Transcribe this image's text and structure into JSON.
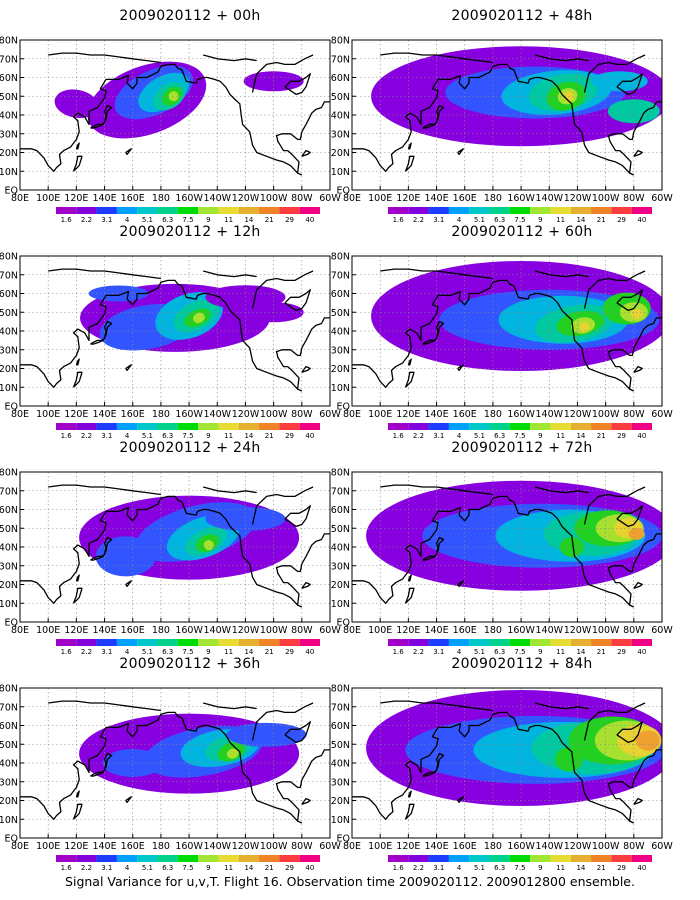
{
  "figure_caption": "Signal Variance for u,v,T. Flight 16. Observation time 2009020112. 2009012800 ensemble.",
  "panels": [
    {
      "title": "2009020112 + 00h",
      "lead": 0
    },
    {
      "title": "2009020112 + 48h",
      "lead": 48
    },
    {
      "title": "2009020112 + 12h",
      "lead": 12
    },
    {
      "title": "2009020112 + 60h",
      "lead": 60
    },
    {
      "title": "2009020112 + 24h",
      "lead": 24
    },
    {
      "title": "2009020112 + 72h",
      "lead": 72
    },
    {
      "title": "2009020112 + 36h",
      "lead": 36
    },
    {
      "title": "2009020112 + 84h",
      "lead": 84
    }
  ],
  "lon_ticks": [
    "80E",
    "100E",
    "120E",
    "140E",
    "160E",
    "180",
    "160W",
    "140W",
    "120W",
    "100W",
    "80W",
    "60W"
  ],
  "lat_ticks": [
    "EQ",
    "10N",
    "20N",
    "30N",
    "40N",
    "50N",
    "60N",
    "70N",
    "80N"
  ],
  "colorbar": {
    "levels": [
      "1.6",
      "2.2",
      "3.1",
      "4",
      "5.1",
      "6.3",
      "7.5",
      "9",
      "11",
      "14",
      "21",
      "29",
      "40"
    ],
    "colors": [
      "#a000c8",
      "#8200dc",
      "#1e3cff",
      "#00a0ff",
      "#00c8c8",
      "#00d28c",
      "#00dc00",
      "#a0e632",
      "#e6dc32",
      "#e6af2d",
      "#f08228",
      "#fa3c3c",
      "#f00082"
    ]
  },
  "field_colors": {
    "low": "#8800e0",
    "blue": "#3355ff",
    "cyan": "#00b4e0",
    "teal": "#00c8a0",
    "green": "#22d022",
    "lime": "#a8e030",
    "yellow": "#e6d232",
    "orange": "#eea030"
  }
}
